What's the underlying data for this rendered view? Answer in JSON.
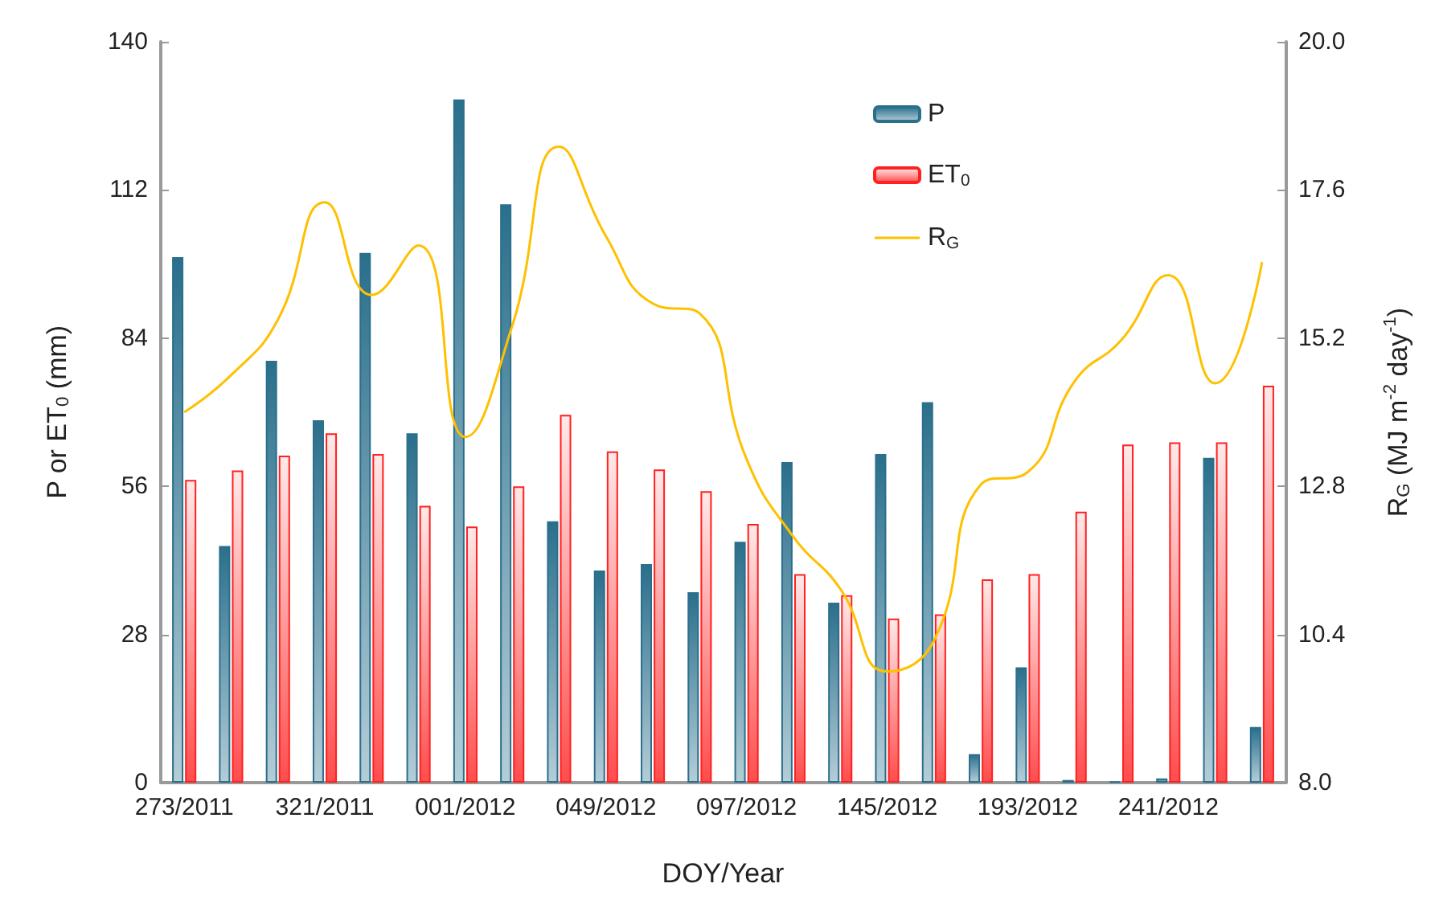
{
  "chart_data": {
    "type": "bar",
    "xlabel": "DOY/Year",
    "ylabel": "P or ET$_{0}$ (mm)",
    "y2label": "R$_{G}$ (MJ m$^{-2}$ day$^{-1}$)",
    "categories": [
      "273/2011",
      null,
      null,
      "321/2011",
      null,
      null,
      "001/2012",
      null,
      null,
      "049/2012",
      null,
      null,
      "097/2012",
      null,
      null,
      "145/2012",
      null,
      null,
      "193/2012",
      null,
      null,
      "241/2012",
      null,
      null
    ],
    "series": [
      {
        "name": "P",
        "color": "#2a6f8c",
        "values": [
          99.3,
          44.7,
          79.7,
          68.5,
          100.1,
          66.0,
          129.1,
          109.3,
          49.4,
          40.1,
          41.3,
          36.0,
          45.5,
          60.6,
          34.0,
          62.1,
          71.9,
          5.4,
          21.8,
          0.5,
          0.2,
          0.8,
          61.4,
          10.5
        ]
      },
      {
        "name": "ET$_{0}$",
        "color": "#ff2020",
        "values": [
          57.2,
          59.0,
          61.8,
          66.0,
          62.1,
          52.3,
          48.4,
          56.0,
          69.5,
          62.6,
          59.2,
          55.1,
          48.9,
          39.4,
          35.4,
          31.0,
          31.8,
          38.4,
          39.4,
          51.2,
          63.9,
          64.3,
          64.3,
          75.0
        ]
      },
      {
        "name": "R$_{G}$",
        "type": "line",
        "axis": "y2",
        "color": "#ffc000",
        "values": [
          14.0,
          14.6,
          15.5,
          17.4,
          15.9,
          16.7,
          13.6,
          15.4,
          18.3,
          16.85,
          15.76,
          15.6,
          13.24,
          11.98,
          11.14,
          9.8,
          10.3,
          12.83,
          13.03,
          14.5,
          15.17,
          16.22,
          14.47,
          16.43
        ]
      }
    ],
    "ylim": [
      0,
      140
    ],
    "yticks": [
      0,
      28,
      56,
      84,
      112,
      140
    ],
    "y2lim": [
      8,
      20
    ],
    "y2ticks": [
      {
        "value": 8,
        "label": "8.0"
      },
      {
        "value": 10.4,
        "label": "10.4"
      },
      {
        "value": 12.8,
        "label": "12.8"
      },
      {
        "value": 15.2,
        "label": "15.2"
      },
      {
        "value": 17.6,
        "label": "17.6"
      },
      {
        "value": 20,
        "label": "20.0"
      }
    ],
    "legend": "top",
    "marker": "none",
    "line_style": "solid",
    "grid": false
  }
}
